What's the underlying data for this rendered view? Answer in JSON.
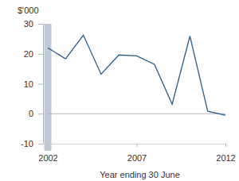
{
  "chart_data": {
    "type": "line",
    "y_label": "$'000",
    "x_label": "Year ending 30 June",
    "x": [
      2002,
      2003,
      2004,
      2005,
      2006,
      2007,
      2008,
      2009,
      2010,
      2011,
      2012
    ],
    "values": [
      22,
      18.3,
      26.2,
      13.2,
      19.6,
      19.3,
      16.5,
      3.2,
      25.9,
      0.8,
      -0.5
    ],
    "color": "#2b5d8c",
    "xlim": [
      2002,
      2012
    ],
    "xticks": [
      2002,
      2007,
      2012
    ],
    "ylim": [
      -10,
      30
    ],
    "yticks": [
      -10,
      0,
      10,
      20,
      30
    ],
    "grid": false
  }
}
